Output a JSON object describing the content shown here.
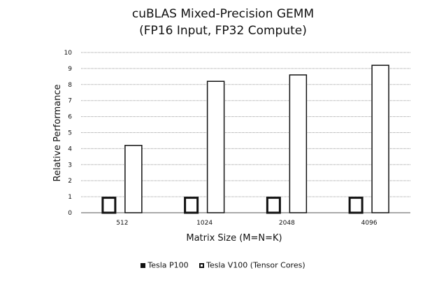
{
  "chart_data": {
    "type": "bar",
    "title": "cuBLAS Mixed-Precision GEMM",
    "subtitle": "(FP16 Input, FP32 Compute)",
    "xlabel": "Matrix Size (M=N=K)",
    "ylabel": "Relative Performance",
    "categories": [
      "512",
      "1024",
      "2048",
      "4096"
    ],
    "series": [
      {
        "name": "Tesla P100",
        "values": [
          1.0,
          1.0,
          1.0,
          1.0
        ]
      },
      {
        "name": "Tesla V100 (Tensor Cores)",
        "values": [
          4.2,
          8.2,
          8.6,
          9.2
        ]
      }
    ],
    "ylim": [
      0,
      10
    ],
    "yticks": [
      "0",
      "1",
      "2",
      "3",
      "4",
      "5",
      "6",
      "7",
      "8",
      "9",
      "10"
    ],
    "grid": true,
    "legend_position": "bottom"
  }
}
